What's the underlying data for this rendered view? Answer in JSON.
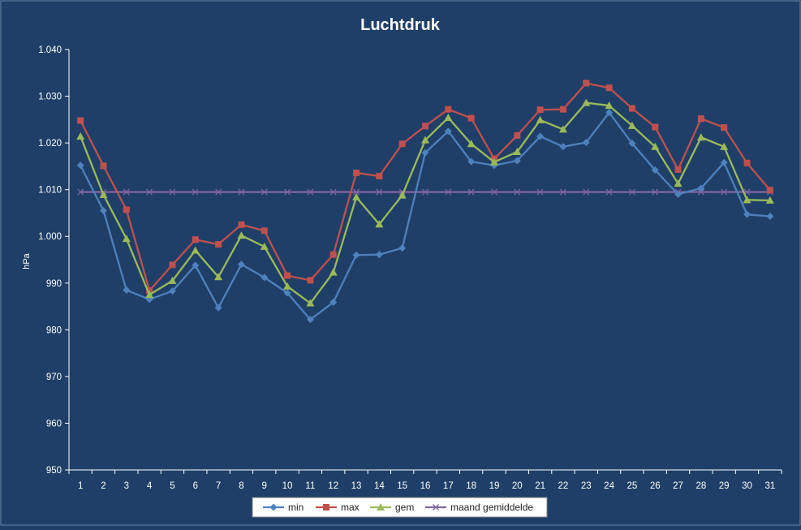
{
  "chart_data": {
    "type": "line",
    "title": "Luchtdruk",
    "xlabel": "",
    "ylabel": "hPa",
    "ylim": [
      950,
      1040
    ],
    "yticks": [
      950,
      960,
      970,
      980,
      990,
      1000,
      1010,
      1020,
      1030,
      1040
    ],
    "ytick_labels": [
      "950",
      "960",
      "970",
      "980",
      "990",
      "1.000",
      "1.010",
      "1.020",
      "1.030",
      "1.040"
    ],
    "categories": [
      "1",
      "2",
      "3",
      "4",
      "5",
      "6",
      "7",
      "8",
      "9",
      "10",
      "11",
      "12",
      "13",
      "14",
      "15",
      "16",
      "17",
      "18",
      "19",
      "20",
      "21",
      "22",
      "23",
      "24",
      "25",
      "26",
      "27",
      "28",
      "29",
      "30",
      "31"
    ],
    "grid": false,
    "legend_position": "bottom",
    "series": [
      {
        "name": "min",
        "color": "#4f81bd",
        "marker": "diamond",
        "values": [
          1015.2,
          1005.5,
          988.5,
          986.5,
          988.3,
          993.8,
          984.7,
          994.0,
          991.2,
          987.9,
          982.2,
          985.9,
          996.0,
          996.1,
          997.5,
          1017.9,
          1022.5,
          1016.0,
          1015.2,
          1016.2,
          1021.4,
          1019.2,
          1020.1,
          1026.5,
          1019.9,
          1014.2,
          1009.0,
          1010.3,
          1015.8,
          1004.7,
          1004.3
        ]
      },
      {
        "name": "max",
        "color": "#c0504d",
        "marker": "square",
        "values": [
          1024.8,
          1015.1,
          1005.7,
          988.4,
          993.9,
          999.3,
          998.3,
          1002.5,
          1001.2,
          991.6,
          990.6,
          996.1,
          1013.6,
          1012.9,
          1019.8,
          1023.6,
          1027.2,
          1025.3,
          1016.6,
          1021.6,
          1027.1,
          1027.2,
          1032.8,
          1031.8,
          1027.4,
          1023.4,
          1014.3,
          1025.2,
          1023.3,
          1015.7,
          1009.9
        ]
      },
      {
        "name": "gem",
        "color": "#9bbb59",
        "marker": "triangle",
        "values": [
          1021.4,
          1008.9,
          999.5,
          987.5,
          990.5,
          997.0,
          991.3,
          1000.2,
          997.8,
          989.3,
          985.7,
          992.3,
          1008.4,
          1002.6,
          1008.8,
          1020.6,
          1025.4,
          1019.8,
          1015.9,
          1018.1,
          1024.9,
          1022.9,
          1028.6,
          1028.0,
          1023.7,
          1019.2,
          1011.3,
          1021.2,
          1019.2,
          1007.8,
          1007.7
        ]
      },
      {
        "name": "maand gemiddelde",
        "color": "#8064a2",
        "marker": "x",
        "values": [
          1009.5,
          1009.5,
          1009.5,
          1009.5,
          1009.5,
          1009.5,
          1009.5,
          1009.5,
          1009.5,
          1009.5,
          1009.5,
          1009.5,
          1009.5,
          1009.5,
          1009.5,
          1009.5,
          1009.5,
          1009.5,
          1009.5,
          1009.5,
          1009.5,
          1009.5,
          1009.5,
          1009.5,
          1009.5,
          1009.5,
          1009.5,
          1009.5,
          1009.5,
          1009.5,
          1009.5
        ]
      }
    ]
  }
}
